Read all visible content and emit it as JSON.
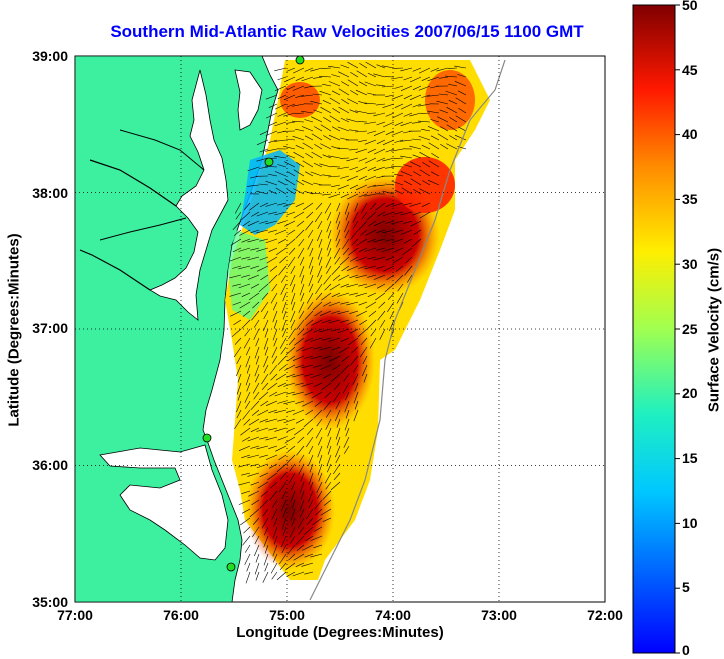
{
  "title": "Southern Mid-Atlantic Raw Velocities 2007/06/15 1100 GMT",
  "axes": {
    "xlabel": "Longitude (Degrees:Minutes)",
    "ylabel": "Latitude (Degrees:Minutes)",
    "xticks": [
      "77:00",
      "76:00",
      "75:00",
      "74:00",
      "73:00",
      "72:00"
    ],
    "yticks": [
      "39:00",
      "38:00",
      "37:00",
      "36:00",
      "35:00"
    ]
  },
  "colorbar": {
    "label": "Surface Velocity (cm/s)",
    "ticks": [
      "50",
      "45",
      "40",
      "35",
      "30",
      "25",
      "20",
      "15",
      "10",
      "5",
      "0"
    ],
    "range": [
      0,
      50
    ],
    "colormap": "jet"
  },
  "colors": {
    "title": "#0000ff",
    "land": "#3cf0a0",
    "water": "#ffffff",
    "coastline": "#000000",
    "station_marker": "#22dd22"
  },
  "map": {
    "lon_range": [
      -77,
      -72
    ],
    "lat_range": [
      35,
      39
    ],
    "grid": true
  }
}
